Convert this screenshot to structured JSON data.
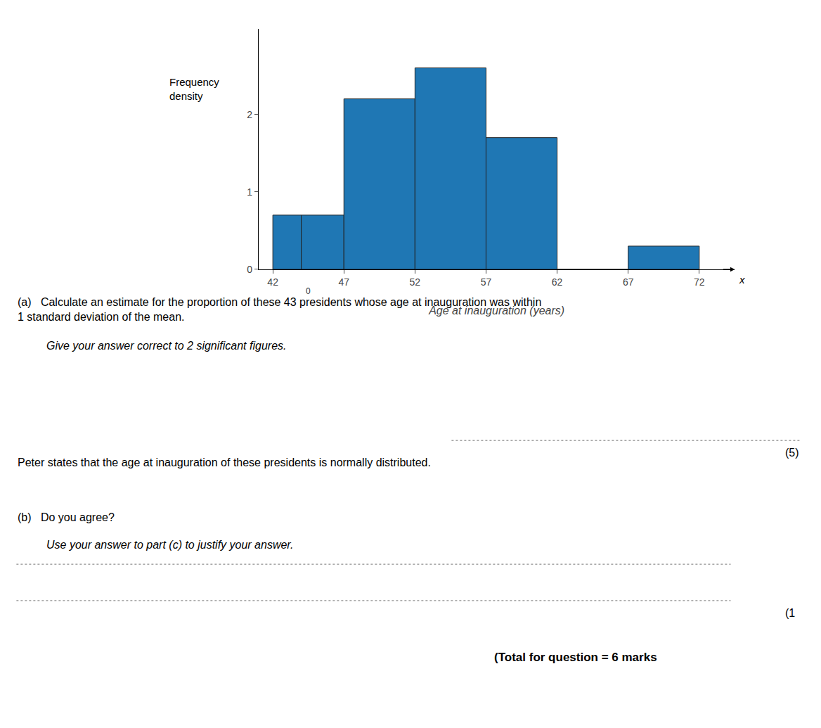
{
  "chart_data": {
    "type": "histogram",
    "bins": [
      42,
      44,
      47,
      52,
      57,
      62,
      67,
      72
    ],
    "values": [
      0.7,
      0.7,
      2.2,
      2.6,
      1.7,
      0,
      0.3
    ],
    "xlabel": "Age at inauguration (years)",
    "ylabel": "Frequency\ndensity",
    "xlim": [
      41,
      74.5
    ],
    "ylim": [
      0,
      3.1
    ],
    "xticks": [
      42,
      47,
      52,
      57,
      62,
      67,
      72
    ],
    "yticks": [
      0,
      1,
      2
    ],
    "grid": false,
    "annotations": [
      "x",
      "0",
      "(a)   Calculate an estimate for the proportion of these 43 presidents whose age at inauguration was within\n1 standard deviation of the mean.",
      "Give your answer correct to 2 significant figures.",
      "Peter states that the age at inauguration of these presidents is normally distributed.",
      "(b)   Do you agree?",
      "Use your answer to part (c) to justify your answer.",
      "(5)",
      "(1",
      "(Total for question = 6 marks"
    ]
  }
}
